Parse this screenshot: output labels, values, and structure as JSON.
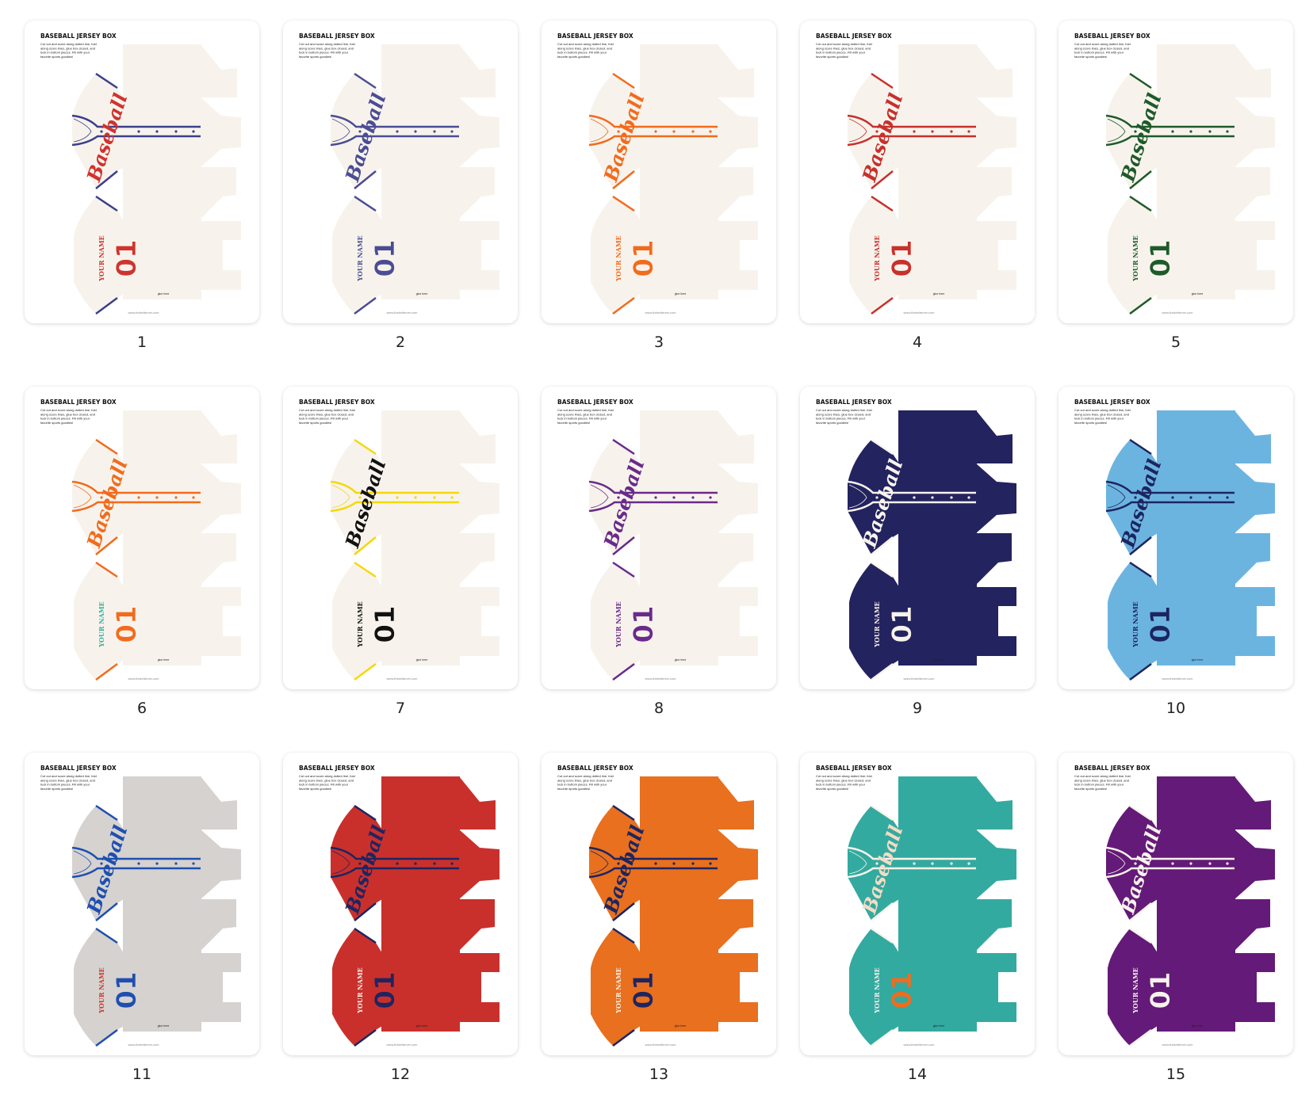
{
  "template": {
    "title": "BASEBALL JERSEY BOX",
    "instructions": [
      "Cut out and score along dotted line, fold",
      "along score lines, glue box closed, and",
      "tuck in bottom pieces. Fill with your",
      "favorite sports goodies!"
    ],
    "script_text": "Baseball",
    "name_text": "YOUR NAME",
    "number_text": "01",
    "glue_label": "glue here",
    "website": "www.thekelterver.com"
  },
  "items": [
    {
      "label": "1",
      "bg": "#f7f3ec",
      "trim": "#3b3f8c",
      "script": "#d0332e",
      "number": "#d0332e",
      "name": "#d0332e"
    },
    {
      "label": "2",
      "bg": "#f7f3ec",
      "trim": "#4a4d94",
      "script": "#4a4d94",
      "number": "#4a4d94",
      "name": "#4a4d94"
    },
    {
      "label": "3",
      "bg": "#f7f3ec",
      "trim": "#f26b1d",
      "script": "#f26b1d",
      "number": "#f26b1d",
      "name": "#f26b1d"
    },
    {
      "label": "4",
      "bg": "#f7f3ec",
      "trim": "#c8302c",
      "script": "#c8302c",
      "number": "#c8302c",
      "name": "#c8302c"
    },
    {
      "label": "5",
      "bg": "#f7f3ec",
      "trim": "#1e5a2a",
      "script": "#1e5a2a",
      "number": "#1e5a2a",
      "name": "#1e5a2a"
    },
    {
      "label": "6",
      "bg": "#f7f3ec",
      "trim": "#f26b1d",
      "script": "#f26b1d",
      "number": "#f26b1d",
      "name": "#33b0a0"
    },
    {
      "label": "7",
      "bg": "#f7f3ec",
      "trim": "#f5d80a",
      "script": "#111111",
      "number": "#111111",
      "name": "#111111"
    },
    {
      "label": "8",
      "bg": "#f7f3ec",
      "trim": "#6a2a8a",
      "script": "#6a2a8a",
      "number": "#6a2a8a",
      "name": "#6a2a8a"
    },
    {
      "label": "9",
      "bg": "#23235f",
      "trim": "#f7f3ec",
      "script": "#f7f3ec",
      "number": "#f7f3ec",
      "name": "#f7f3ec"
    },
    {
      "label": "10",
      "bg": "#6cb4e0",
      "trim": "#1c2560",
      "script": "#1c2560",
      "number": "#1c2560",
      "name": "#1c2560"
    },
    {
      "label": "11",
      "bg": "#d5d2cf",
      "trim": "#1f4fb0",
      "script": "#1f4fb0",
      "number": "#1f4fb0",
      "name": "#d0332e"
    },
    {
      "label": "12",
      "bg": "#c9302c",
      "trim": "#1e2560",
      "script": "#1e2560",
      "number": "#1e2560",
      "name": "#f7f3ec"
    },
    {
      "label": "13",
      "bg": "#e8701e",
      "trim": "#1e2560",
      "script": "#1e2560",
      "number": "#1e2560",
      "name": "#f7f3ec"
    },
    {
      "label": "14",
      "bg": "#33aaa0",
      "trim": "#f7f3ec",
      "script": "#f3dcc4",
      "number": "#f26b1d",
      "name": "#f7f3ec"
    },
    {
      "label": "15",
      "bg": "#641a78",
      "trim": "#f7f3ec",
      "script": "#f7f3ec",
      "number": "#f7f3ec",
      "name": "#f7f3ec"
    }
  ]
}
